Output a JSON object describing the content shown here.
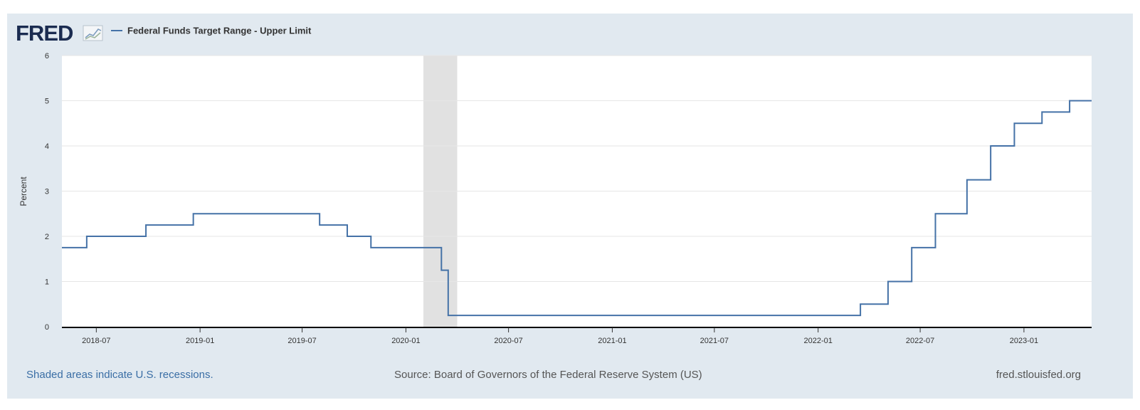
{
  "brand": {
    "logo_text": "FRED",
    "logo_icon": "fred-chart-icon"
  },
  "colors": {
    "series": "#4572a7",
    "recession": "#e1e1e1",
    "background": "#e1e9f0",
    "plot_background": "#ffffff",
    "gridline": "#e6e6e6",
    "logo": "#1a2b50",
    "link": "#3a6ea5"
  },
  "footer": {
    "recession_note": "Shaded areas indicate U.S. recessions.",
    "source": "Source: Board of Governors of the Federal Reserve System (US)",
    "site": "fred.stlouisfed.org"
  },
  "chart_data": {
    "type": "line",
    "step": true,
    "title": "",
    "ylabel": "Percent",
    "xlabel": "",
    "ylim": [
      0,
      6
    ],
    "yticks": [
      0,
      1,
      2,
      3,
      4,
      5,
      6
    ],
    "xlim": [
      "2018-05-01",
      "2023-05-01"
    ],
    "xticks": [
      "2018-07",
      "2019-01",
      "2019-07",
      "2020-01",
      "2020-07",
      "2021-01",
      "2021-07",
      "2022-01",
      "2022-07",
      "2023-01"
    ],
    "grid": true,
    "legend": "top-left",
    "recessions": [
      {
        "start": "2020-02-01",
        "end": "2020-04-01"
      }
    ],
    "series": [
      {
        "name": "Federal Funds Target Range - Upper Limit",
        "points": [
          [
            "2018-05-01",
            1.75
          ],
          [
            "2018-06-14",
            2.0
          ],
          [
            "2018-09-27",
            2.25
          ],
          [
            "2018-12-20",
            2.5
          ],
          [
            "2019-08-01",
            2.25
          ],
          [
            "2019-09-19",
            2.0
          ],
          [
            "2019-10-31",
            1.75
          ],
          [
            "2020-03-04",
            1.25
          ],
          [
            "2020-03-16",
            0.25
          ],
          [
            "2022-03-17",
            0.5
          ],
          [
            "2022-05-05",
            1.0
          ],
          [
            "2022-06-16",
            1.75
          ],
          [
            "2022-07-28",
            2.5
          ],
          [
            "2022-09-22",
            3.25
          ],
          [
            "2022-11-03",
            4.0
          ],
          [
            "2022-12-15",
            4.5
          ],
          [
            "2023-02-02",
            4.75
          ],
          [
            "2023-03-23",
            5.0
          ],
          [
            "2023-05-01",
            5.0
          ]
        ]
      }
    ]
  }
}
